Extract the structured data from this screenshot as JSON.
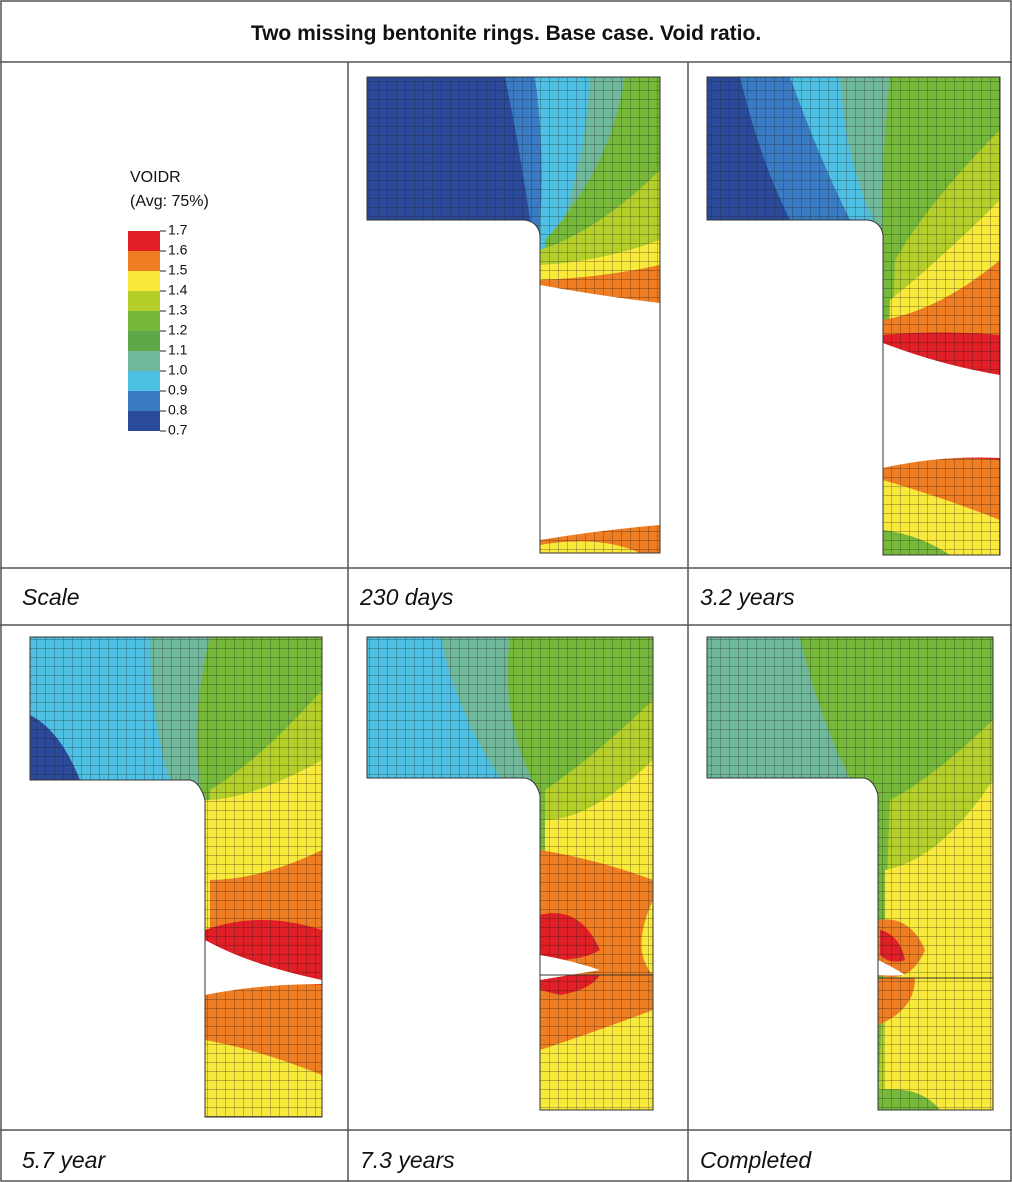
{
  "header": {
    "title": "Two missing bentonite rings. Base case. Void ratio."
  },
  "legend": {
    "title": "VOIDR",
    "subtitle": "(Avg: 75%)",
    "labels": [
      "1.7",
      "1.6",
      "1.5",
      "1.4",
      "1.3",
      "1.2",
      "1.1",
      "1.0",
      "0.9",
      "0.8",
      "0.7"
    ]
  },
  "panels": [
    {
      "caption": "Scale"
    },
    {
      "caption": "230 days"
    },
    {
      "caption": "3.2 years"
    },
    {
      "caption": "5.7 year"
    },
    {
      "caption": "7.3 years"
    },
    {
      "caption": "Completed"
    }
  ]
}
